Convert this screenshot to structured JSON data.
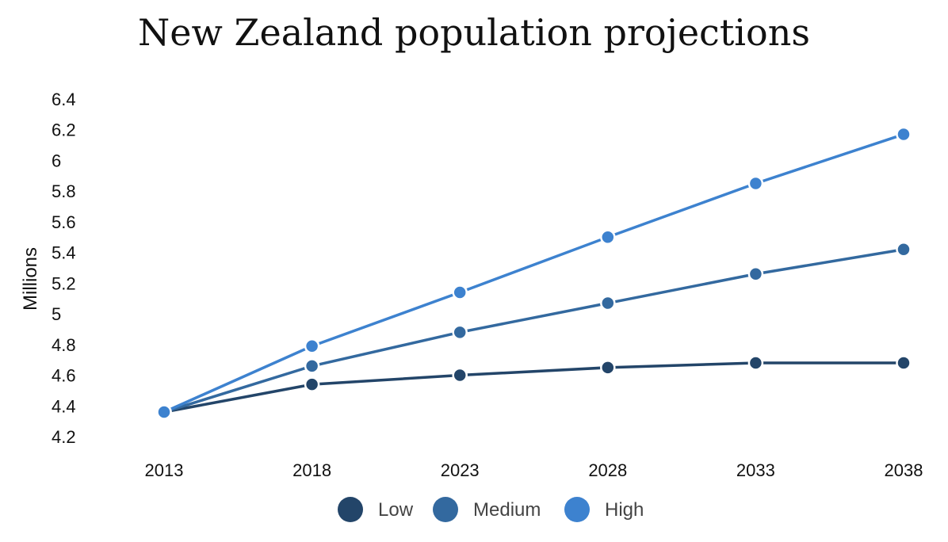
{
  "chart_data": {
    "type": "line",
    "title": "New Zealand population projections",
    "xlabel": "",
    "ylabel": "Millions",
    "x": [
      "2013",
      "2018",
      "2023",
      "2028",
      "2033",
      "2038"
    ],
    "ylim": [
      4.2,
      6.4
    ],
    "yticks": [
      "4.2",
      "4.4",
      "4.6",
      "4.8",
      "5",
      "5.2",
      "5.4",
      "5.6",
      "5.8",
      "6",
      "6.2",
      "6.4"
    ],
    "grid": false,
    "legend_position": "bottom",
    "series": [
      {
        "name": "Low",
        "color": "#234569",
        "values": [
          4.36,
          4.54,
          4.6,
          4.65,
          4.68,
          4.68
        ]
      },
      {
        "name": "Medium",
        "color": "#33699f",
        "values": [
          4.36,
          4.66,
          4.88,
          5.07,
          5.26,
          5.42
        ]
      },
      {
        "name": "High",
        "color": "#3d82cf",
        "values": [
          4.36,
          4.79,
          5.14,
          5.5,
          5.85,
          6.17
        ]
      }
    ]
  }
}
